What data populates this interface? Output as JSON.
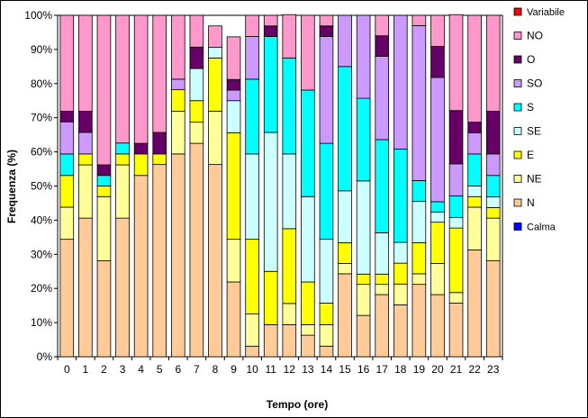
{
  "chart_data": {
    "type": "bar",
    "stacked": true,
    "xlabel": "Tempo (ore)",
    "ylabel": "Frequenza (%)",
    "ylim": [
      0,
      100
    ],
    "yticks": [
      "0%",
      "10%",
      "20%",
      "30%",
      "40%",
      "50%",
      "60%",
      "70%",
      "80%",
      "90%",
      "100%"
    ],
    "grid": false,
    "legend_position": "right",
    "categories": [
      "0",
      "1",
      "2",
      "3",
      "4",
      "5",
      "6",
      "7",
      "8",
      "9",
      "10",
      "11",
      "12",
      "13",
      "14",
      "15",
      "16",
      "17",
      "18",
      "19",
      "20",
      "21",
      "22",
      "23"
    ],
    "series": [
      {
        "name": "Calma",
        "color": "#0000ff",
        "values": [
          0,
          0,
          0,
          0,
          0,
          0,
          0,
          0,
          0,
          0,
          0,
          0,
          0,
          0,
          0,
          0,
          0,
          0,
          0,
          0,
          0,
          0,
          0,
          0
        ]
      },
      {
        "name": "N",
        "color": "#ffcc99",
        "values": [
          34.4,
          40.6,
          28.1,
          40.6,
          53.1,
          56.3,
          59.4,
          62.5,
          56.3,
          21.9,
          3.1,
          9.4,
          9.4,
          6.3,
          3.1,
          24.3,
          12.1,
          18.2,
          15.2,
          21.2,
          18.2,
          15.7,
          31.3,
          28.1
        ]
      },
      {
        "name": "NE",
        "color": "#ffff99",
        "values": [
          9.4,
          15.6,
          18.8,
          15.6,
          0,
          0,
          12.5,
          6.2,
          15.6,
          12.5,
          9.4,
          0,
          6.2,
          3.1,
          6.3,
          3.0,
          9.1,
          3.0,
          6.1,
          3.1,
          9.1,
          3.1,
          12.5,
          12.5
        ]
      },
      {
        "name": "E",
        "color": "#ffff00",
        "values": [
          9.3,
          3.2,
          3.1,
          3.2,
          6.3,
          3.1,
          6.3,
          6.3,
          15.6,
          31.2,
          21.9,
          15.6,
          21.9,
          12.5,
          6.3,
          6.1,
          3.0,
          3.0,
          6.1,
          9.1,
          12.1,
          18.9,
          3.1,
          3.1
        ]
      },
      {
        "name": "SE",
        "color": "#ccffff",
        "values": [
          0,
          0,
          0,
          0,
          0,
          0,
          0,
          9.4,
          3.1,
          9.4,
          25,
          40.7,
          21.9,
          25,
          18.7,
          15.2,
          27.3,
          12.1,
          6.1,
          12.1,
          3.0,
          3.1,
          3.1,
          3.1
        ]
      },
      {
        "name": "S",
        "color": "#00ffff",
        "values": [
          6.3,
          0,
          3.1,
          3.2,
          0,
          0,
          0,
          0,
          0,
          0,
          21.9,
          28.1,
          28.1,
          31.2,
          28.1,
          36.4,
          24.2,
          27.3,
          27.3,
          6.1,
          3.0,
          6.3,
          9.4,
          6.3
        ]
      },
      {
        "name": "SO",
        "color": "#cc99ff",
        "values": [
          9.4,
          6.3,
          0,
          0,
          0,
          0,
          3.1,
          0,
          0,
          3.1,
          12.5,
          0,
          0,
          0,
          31.3,
          15.0,
          24.3,
          24.4,
          39.2,
          45.4,
          36.4,
          9.4,
          6.2,
          6.3
        ]
      },
      {
        "name": "O",
        "color": "#660066",
        "values": [
          3.1,
          6.2,
          3.1,
          0,
          3.1,
          6.3,
          0,
          6.3,
          0,
          3.1,
          0,
          3.1,
          0,
          0,
          3.1,
          0,
          0,
          6.0,
          0,
          0,
          9.1,
          15.6,
          3.1,
          12.5
        ]
      },
      {
        "name": "NO",
        "color": "#ff99cc",
        "values": [
          28.1,
          28.1,
          43.8,
          37.4,
          37.5,
          34.3,
          18.7,
          9.3,
          6.3,
          12.5,
          6.2,
          3.1,
          12.7,
          21.9,
          3.1,
          0,
          0,
          6.0,
          0,
          3.0,
          9.1,
          28.1,
          31.3,
          28.1
        ]
      },
      {
        "name": "Variabile",
        "color": "#ff0000",
        "values": [
          0,
          0,
          0,
          0,
          0,
          0,
          0,
          0,
          0,
          0,
          0,
          0,
          0,
          0,
          0,
          0,
          0,
          0,
          0,
          0,
          0,
          0,
          0,
          0
        ]
      }
    ]
  }
}
